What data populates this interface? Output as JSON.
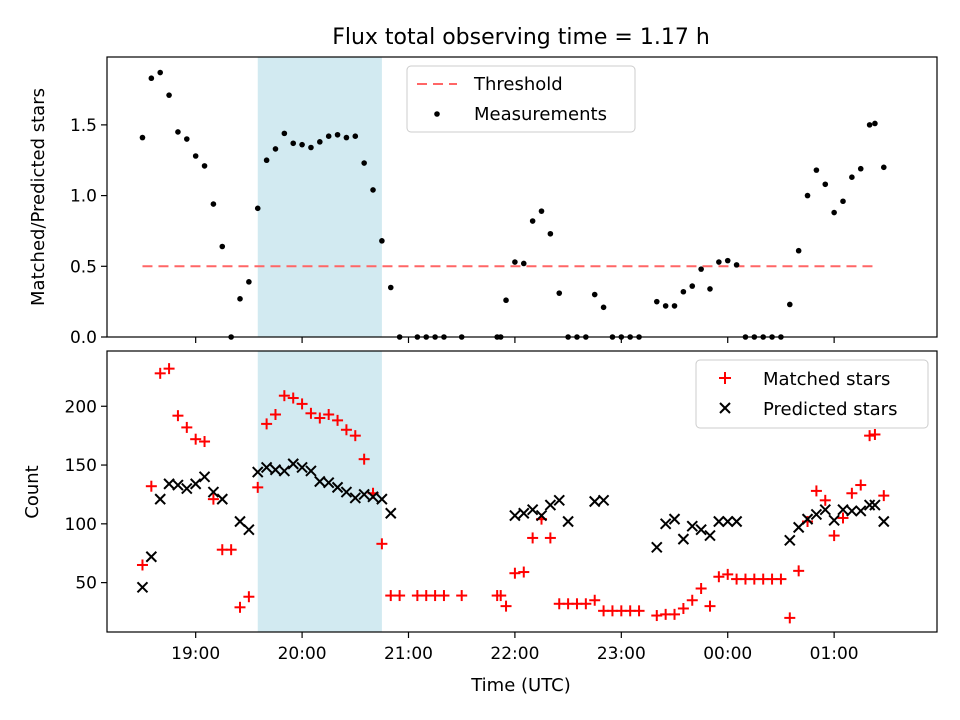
{
  "title": "Flux total observing time = 1.17 h",
  "chart_data": [
    {
      "type": "scatter",
      "panel": "top",
      "title": "Flux total observing time = 1.17 h",
      "xlabel": "",
      "ylabel": "Matched/Predicted stars",
      "xlim": [
        "18:10",
        "01:58"
      ],
      "ylim": [
        0,
        1.98
      ],
      "yticks": [
        0.0,
        0.5,
        1.0,
        1.5
      ],
      "ytick_labels": [
        "0.0",
        "0.5",
        "1.0",
        "1.5"
      ],
      "grid": false,
      "legend_position": "top-center",
      "shaded_interval": {
        "start": "19:35",
        "end": "20:45",
        "color": "#add8e6"
      },
      "threshold": {
        "name": "Threshold",
        "value": 0.5,
        "start": "18:30",
        "end": "01:25",
        "color": "#ff6666"
      },
      "series": [
        {
          "name": "Measurements",
          "color": "#000000",
          "points": [
            [
              "18:30",
              1.41
            ],
            [
              "18:35",
              1.83
            ],
            [
              "18:40",
              1.87
            ],
            [
              "18:45",
              1.71
            ],
            [
              "18:50",
              1.45
            ],
            [
              "18:55",
              1.4
            ],
            [
              "19:00",
              1.28
            ],
            [
              "19:05",
              1.21
            ],
            [
              "19:10",
              0.94
            ],
            [
              "19:15",
              0.64
            ],
            [
              "19:20",
              0.0
            ],
            [
              "19:25",
              0.27
            ],
            [
              "19:30",
              0.39
            ],
            [
              "19:35",
              0.91
            ],
            [
              "19:40",
              1.25
            ],
            [
              "19:45",
              1.33
            ],
            [
              "19:50",
              1.44
            ],
            [
              "19:55",
              1.37
            ],
            [
              "20:00",
              1.36
            ],
            [
              "20:05",
              1.34
            ],
            [
              "20:10",
              1.38
            ],
            [
              "20:15",
              1.42
            ],
            [
              "20:20",
              1.43
            ],
            [
              "20:25",
              1.41
            ],
            [
              "20:30",
              1.42
            ],
            [
              "20:35",
              1.23
            ],
            [
              "20:40",
              1.04
            ],
            [
              "20:45",
              0.68
            ],
            [
              "20:50",
              0.35
            ],
            [
              "20:55",
              0.0
            ],
            [
              "21:05",
              0.0
            ],
            [
              "21:10",
              0.0
            ],
            [
              "21:15",
              0.0
            ],
            [
              "21:20",
              0.0
            ],
            [
              "21:30",
              0.0
            ],
            [
              "21:50",
              0.0
            ],
            [
              "21:52",
              0.0
            ],
            [
              "21:55",
              0.26
            ],
            [
              "22:00",
              0.53
            ],
            [
              "22:05",
              0.52
            ],
            [
              "22:10",
              0.82
            ],
            [
              "22:15",
              0.89
            ],
            [
              "22:20",
              0.73
            ],
            [
              "22:25",
              0.31
            ],
            [
              "22:30",
              0.0
            ],
            [
              "22:35",
              0.0
            ],
            [
              "22:40",
              0.0
            ],
            [
              "22:45",
              0.3
            ],
            [
              "22:50",
              0.21
            ],
            [
              "22:55",
              0.0
            ],
            [
              "23:00",
              0.0
            ],
            [
              "23:05",
              0.0
            ],
            [
              "23:10",
              0.0
            ],
            [
              "23:20",
              0.25
            ],
            [
              "23:25",
              0.22
            ],
            [
              "23:30",
              0.22
            ],
            [
              "23:35",
              0.32
            ],
            [
              "23:40",
              0.36
            ],
            [
              "23:45",
              0.48
            ],
            [
              "23:50",
              0.34
            ],
            [
              "23:55",
              0.53
            ],
            [
              "00:00",
              0.54
            ],
            [
              "00:05",
              0.51
            ],
            [
              "00:10",
              0.0
            ],
            [
              "00:15",
              0.0
            ],
            [
              "00:20",
              0.0
            ],
            [
              "00:25",
              0.0
            ],
            [
              "00:30",
              0.0
            ],
            [
              "00:35",
              0.23
            ],
            [
              "00:40",
              0.61
            ],
            [
              "00:45",
              1.0
            ],
            [
              "00:50",
              1.18
            ],
            [
              "00:55",
              1.08
            ],
            [
              "01:00",
              0.88
            ],
            [
              "01:05",
              0.96
            ],
            [
              "01:10",
              1.13
            ],
            [
              "01:15",
              1.19
            ],
            [
              "01:20",
              1.5
            ],
            [
              "01:23",
              1.51
            ],
            [
              "01:28",
              1.2
            ]
          ]
        }
      ]
    },
    {
      "type": "scatter",
      "panel": "bottom",
      "xlabel": "Time (UTC)",
      "ylabel": "Count",
      "xlim": [
        "18:10",
        "01:58"
      ],
      "ylim": [
        8,
        247
      ],
      "yticks": [
        50,
        100,
        150,
        200
      ],
      "ytick_labels": [
        "50",
        "100",
        "150",
        "200"
      ],
      "xticks": [
        "19:00",
        "20:00",
        "21:00",
        "22:00",
        "23:00",
        "00:00",
        "01:00"
      ],
      "xtick_labels": [
        "19:00",
        "20:00",
        "21:00",
        "22:00",
        "23:00",
        "00:00",
        "01:00"
      ],
      "grid": false,
      "legend_position": "top-right",
      "shaded_interval": {
        "start": "19:35",
        "end": "20:45",
        "color": "#add8e6"
      },
      "series": [
        {
          "name": "Matched stars",
          "marker": "plus",
          "color": "#ff0000",
          "points": [
            [
              "18:30",
              65
            ],
            [
              "18:35",
              132
            ],
            [
              "18:40",
              228
            ],
            [
              "18:45",
              232
            ],
            [
              "18:50",
              192
            ],
            [
              "18:55",
              182
            ],
            [
              "19:00",
              172
            ],
            [
              "19:05",
              170
            ],
            [
              "19:10",
              121
            ],
            [
              "19:15",
              78
            ],
            [
              "19:20",
              78
            ],
            [
              "19:25",
              29
            ],
            [
              "19:30",
              38
            ],
            [
              "19:35",
              131
            ],
            [
              "19:40",
              185
            ],
            [
              "19:45",
              193
            ],
            [
              "19:50",
              209
            ],
            [
              "19:55",
              207
            ],
            [
              "20:00",
              202
            ],
            [
              "20:05",
              194
            ],
            [
              "20:10",
              190
            ],
            [
              "20:15",
              193
            ],
            [
              "20:20",
              188
            ],
            [
              "20:25",
              180
            ],
            [
              "20:30",
              175
            ],
            [
              "20:35",
              155
            ],
            [
              "20:40",
              126
            ],
            [
              "20:45",
              83
            ],
            [
              "20:50",
              39
            ],
            [
              "20:55",
              39
            ],
            [
              "21:05",
              39
            ],
            [
              "21:10",
              39
            ],
            [
              "21:15",
              39
            ],
            [
              "21:20",
              39
            ],
            [
              "21:30",
              39
            ],
            [
              "21:50",
              39
            ],
            [
              "21:52",
              39
            ],
            [
              "21:55",
              30
            ],
            [
              "22:00",
              58
            ],
            [
              "22:05",
              59
            ],
            [
              "22:10",
              88
            ],
            [
              "22:15",
              104
            ],
            [
              "22:20",
              88
            ],
            [
              "22:25",
              32
            ],
            [
              "22:30",
              32
            ],
            [
              "22:35",
              32
            ],
            [
              "22:40",
              32
            ],
            [
              "22:45",
              35
            ],
            [
              "22:50",
              26
            ],
            [
              "22:55",
              26
            ],
            [
              "23:00",
              26
            ],
            [
              "23:05",
              26
            ],
            [
              "23:10",
              26
            ],
            [
              "23:20",
              22
            ],
            [
              "23:25",
              23
            ],
            [
              "23:30",
              23
            ],
            [
              "23:35",
              28
            ],
            [
              "23:40",
              35
            ],
            [
              "23:45",
              45
            ],
            [
              "23:50",
              30
            ],
            [
              "23:55",
              55
            ],
            [
              "00:00",
              57
            ],
            [
              "00:05",
              53
            ],
            [
              "00:10",
              53
            ],
            [
              "00:15",
              53
            ],
            [
              "00:20",
              53
            ],
            [
              "00:25",
              53
            ],
            [
              "00:30",
              53
            ],
            [
              "00:35",
              20
            ],
            [
              "00:40",
              60
            ],
            [
              "00:45",
              102
            ],
            [
              "00:50",
              128
            ],
            [
              "00:55",
              120
            ],
            [
              "01:00",
              90
            ],
            [
              "01:05",
              105
            ],
            [
              "01:10",
              126
            ],
            [
              "01:15",
              133
            ],
            [
              "01:20",
              175
            ],
            [
              "01:23",
              176
            ],
            [
              "01:28",
              124
            ]
          ]
        },
        {
          "name": "Predicted stars",
          "marker": "x",
          "color": "#000000",
          "points": [
            [
              "18:30",
              46
            ],
            [
              "18:35",
              72
            ],
            [
              "18:40",
              121
            ],
            [
              "18:45",
              134
            ],
            [
              "18:50",
              133
            ],
            [
              "18:55",
              130
            ],
            [
              "19:00",
              134
            ],
            [
              "19:05",
              140
            ],
            [
              "19:10",
              127
            ],
            [
              "19:15",
              121
            ],
            [
              "19:25",
              102
            ],
            [
              "19:30",
              95
            ],
            [
              "19:35",
              144
            ],
            [
              "19:40",
              148
            ],
            [
              "19:45",
              146
            ],
            [
              "19:50",
              145
            ],
            [
              "19:55",
              151
            ],
            [
              "20:00",
              148
            ],
            [
              "20:05",
              145
            ],
            [
              "20:10",
              136
            ],
            [
              "20:15",
              135
            ],
            [
              "20:20",
              131
            ],
            [
              "20:25",
              127
            ],
            [
              "20:30",
              122
            ],
            [
              "20:35",
              125
            ],
            [
              "20:40",
              123
            ],
            [
              "20:45",
              121
            ],
            [
              "20:50",
              109
            ],
            [
              "22:00",
              107
            ],
            [
              "22:05",
              109
            ],
            [
              "22:10",
              112
            ],
            [
              "22:15",
              107
            ],
            [
              "22:20",
              116
            ],
            [
              "22:25",
              120
            ],
            [
              "22:30",
              102
            ],
            [
              "22:45",
              119
            ],
            [
              "22:50",
              120
            ],
            [
              "23:20",
              80
            ],
            [
              "23:25",
              100
            ],
            [
              "23:30",
              104
            ],
            [
              "23:35",
              87
            ],
            [
              "23:40",
              98
            ],
            [
              "23:45",
              95
            ],
            [
              "23:50",
              90
            ],
            [
              "23:55",
              102
            ],
            [
              "00:00",
              102
            ],
            [
              "00:05",
              102
            ],
            [
              "00:35",
              86
            ],
            [
              "00:40",
              97
            ],
            [
              "00:45",
              104
            ],
            [
              "00:50",
              108
            ],
            [
              "00:55",
              112
            ],
            [
              "01:00",
              103
            ],
            [
              "01:05",
              112
            ],
            [
              "01:10",
              111
            ],
            [
              "01:15",
              111
            ],
            [
              "01:20",
              116
            ],
            [
              "01:23",
              116
            ],
            [
              "01:28",
              102
            ]
          ]
        }
      ]
    }
  ]
}
